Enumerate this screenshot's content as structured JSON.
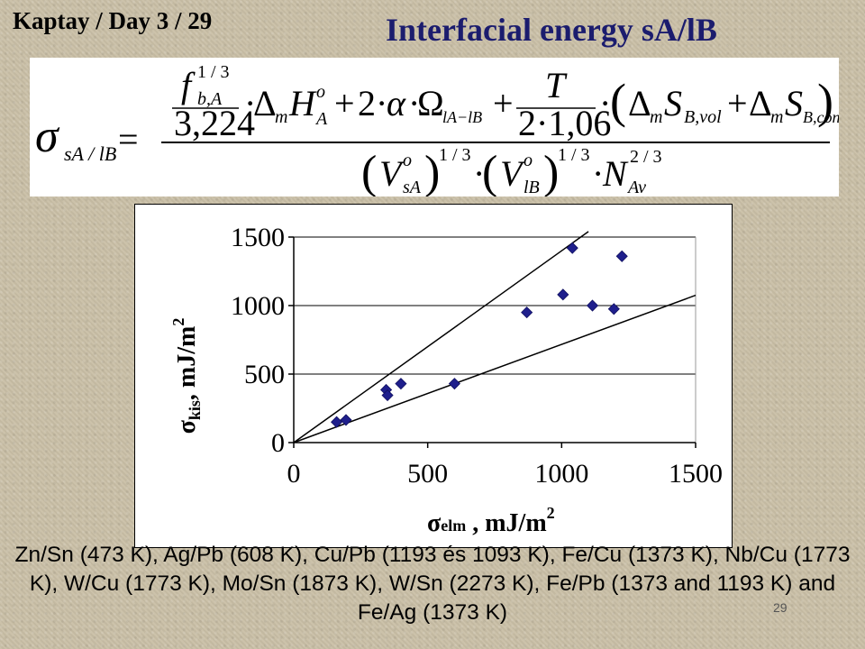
{
  "header": {
    "lecture": "Kaptay / Day 3 / 29",
    "title": "Interfacial energy sA/lB"
  },
  "formula": {
    "lhs_symbol": "σ",
    "lhs_sub": "sA / lB",
    "equals": "=",
    "num_f": "f",
    "num_f_sup": "1 / 3",
    "num_f_sub": "b,A",
    "num_const1": "3,224",
    "num_dot": "·",
    "num_delta": "Δ",
    "num_m": "m",
    "num_H": "H",
    "num_H_sup": "o",
    "num_H_sub": "A",
    "num_plus": "+",
    "num_two": "2",
    "num_alpha": "α",
    "num_Omega": "Ω",
    "num_Omega_sub": "lA−lB",
    "num_T": "T",
    "num_const2": "2·1,06",
    "num_paren_open": "(",
    "num_paren_close": ")",
    "num_S": "S",
    "num_S1_sub": "B,vol",
    "num_S2_sub": "B,conf",
    "den_V": "V",
    "den_V_sup": "o",
    "den_V1_sub": "sA",
    "den_V2_sub": "lB",
    "den_exp": "1 / 3",
    "den_N": "N",
    "den_N_sup": "2 / 3",
    "den_N_sub": "Av"
  },
  "chart_data": {
    "type": "scatter",
    "xlabel": "σelm , mJ/m2",
    "xlabel_parts": {
      "symbol": "σ",
      "sub": "elm",
      "unit": " , mJ/m",
      "sup": "2"
    },
    "ylabel": "σkis, mJ/m2",
    "ylabel_parts": {
      "symbol": "σ",
      "sub": "kis",
      "unit": ", mJ/m",
      "sup": "2"
    },
    "xlim": [
      0,
      1500
    ],
    "ylim": [
      0,
      1500
    ],
    "xticks": [
      0,
      500,
      1000,
      1500
    ],
    "yticks": [
      0,
      500,
      1000,
      1500
    ],
    "xtick_labels": [
      "0",
      "500",
      "1000",
      "1500"
    ],
    "ytick_labels": [
      "0",
      "500",
      "1000",
      "1500"
    ],
    "grid": "horizontal",
    "marker": "diamond",
    "marker_color": "#1f1f8c",
    "points": [
      {
        "x": 160,
        "y": 150
      },
      {
        "x": 195,
        "y": 165
      },
      {
        "x": 345,
        "y": 385
      },
      {
        "x": 350,
        "y": 345
      },
      {
        "x": 400,
        "y": 430
      },
      {
        "x": 600,
        "y": 430
      },
      {
        "x": 870,
        "y": 950
      },
      {
        "x": 1005,
        "y": 1080
      },
      {
        "x": 1040,
        "y": 1420
      },
      {
        "x": 1115,
        "y": 1000
      },
      {
        "x": 1195,
        "y": 975
      },
      {
        "x": 1225,
        "y": 1360
      }
    ],
    "lines": [
      {
        "x": [
          0,
          1100
        ],
        "y": [
          0,
          1540
        ]
      },
      {
        "x": [
          0,
          1500
        ],
        "y": [
          0,
          1075
        ]
      }
    ]
  },
  "caption": "Zn/Sn (473 K), Ag/Pb (608 K), Cu/Pb (1193 és 1093 K), Fe/Cu (1373 K), Nb/Cu (1773 K), W/Cu (1773 K), Mo/Sn (1873 K), W/Sn (2273 K), Fe/Pb (1373 and 1193 K) and Fe/Ag (1373 K)",
  "slide_number": "29"
}
